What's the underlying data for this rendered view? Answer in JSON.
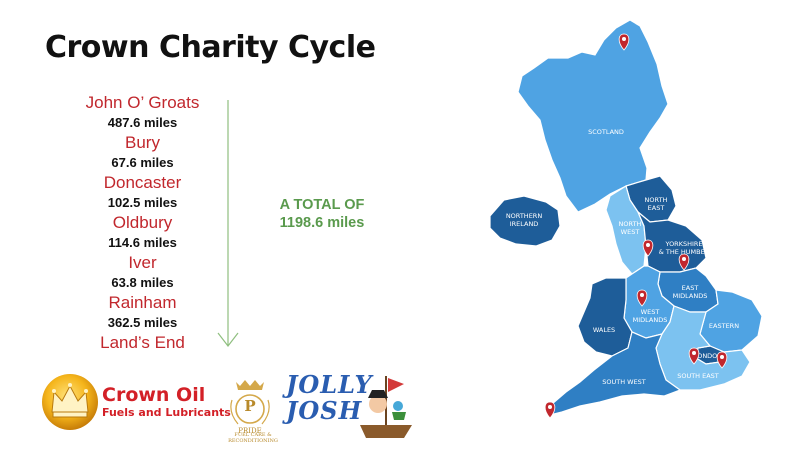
{
  "title": "Crown Charity Cycle",
  "route": [
    {
      "stop": "John O’ Groats",
      "distance": "487.6 miles"
    },
    {
      "stop": "Bury",
      "distance": "67.6 miles"
    },
    {
      "stop": "Doncaster",
      "distance": "102.5 miles"
    },
    {
      "stop": "Oldbury",
      "distance": "114.6 miles"
    },
    {
      "stop": "Iver",
      "distance": "63.8 miles"
    },
    {
      "stop": "Rainham",
      "distance": "362.5 miles"
    },
    {
      "stop": "Land’s End",
      "distance": ""
    }
  ],
  "total": {
    "line1": "A TOTAL OF",
    "line2": "1198.6 miles"
  },
  "map": {
    "regions": {
      "scotland": "SCOTLAND",
      "northern_ireland": [
        "NORTHERN",
        "IRELAND"
      ],
      "north_east": [
        "NORTH",
        "EAST"
      ],
      "north_west": [
        "NORTH",
        "WEST"
      ],
      "yorkshire": [
        "YORKSHIRE",
        "& THE HUMBER"
      ],
      "east_midlands": [
        "EAST",
        "MIDLANDS"
      ],
      "west_midlands": [
        "WEST",
        "MIDLANDS"
      ],
      "wales": "WALES",
      "eastern": "EASTERN",
      "london": "LONDON",
      "south_east": "SOUTH EAST",
      "south_west": "SOUTH WEST"
    },
    "colors": {
      "light": "#4fa3e3",
      "mid": "#2f7fc4",
      "dark": "#1e5d99",
      "pale": "#7cc2f0",
      "pin": "#c1272d"
    }
  },
  "logos": {
    "crown_oil": {
      "line1": "Crown Oil",
      "line2": "Fuels and Lubricants"
    },
    "pride": {
      "letter": "P",
      "name": "PRIDE",
      "tagline": "FUEL CARE & RECONDITIONING"
    },
    "jolly_josh": {
      "line1": "JOLLY",
      "line2": "JOSH"
    }
  }
}
